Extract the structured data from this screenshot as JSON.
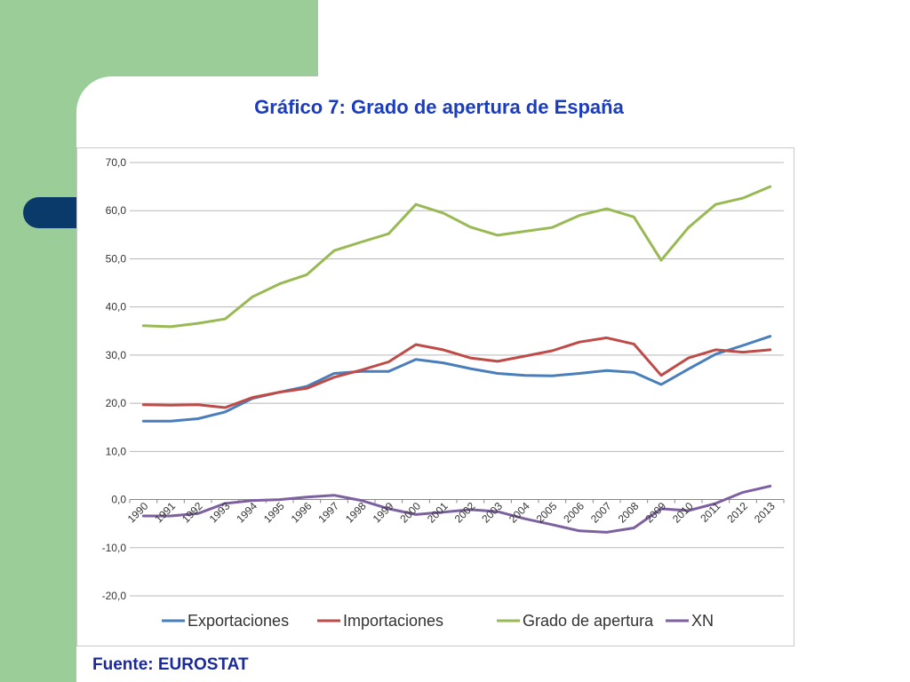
{
  "slide": {
    "title": "Gráfico 7: Grado de apertura de España",
    "source": "Fuente: EUROSTAT"
  },
  "chart_data": {
    "type": "line",
    "title": "",
    "xlabel": "",
    "ylabel": "",
    "ylim": [
      -20,
      70
    ],
    "yticks": [
      -20,
      -10,
      0,
      10,
      20,
      30,
      40,
      50,
      60,
      70
    ],
    "ytick_labels": [
      "-20,0",
      "-10,0",
      "0,0",
      "10,0",
      "20,0",
      "30,0",
      "40,0",
      "50,0",
      "60,0",
      "70,0"
    ],
    "grid": true,
    "legend_position": "bottom",
    "categories": [
      "1990",
      "1991",
      "1992",
      "1993",
      "1994",
      "1995",
      "1996",
      "1997",
      "1998",
      "1999",
      "2000",
      "2001",
      "2002",
      "2003",
      "2004",
      "2005",
      "2006",
      "2007",
      "2008",
      "2009",
      "2010",
      "2011",
      "2012",
      "2013"
    ],
    "series": [
      {
        "name": "Exportaciones",
        "color": "#4a7ebb",
        "values": [
          16.3,
          16.3,
          16.8,
          18.2,
          21.0,
          22.3,
          23.5,
          26.2,
          26.6,
          26.6,
          29.1,
          28.4,
          27.2,
          26.2,
          25.8,
          25.7,
          26.2,
          26.8,
          26.4,
          23.9,
          27.1,
          30.2,
          32.0,
          33.9
        ]
      },
      {
        "name": "Importaciones",
        "color": "#be4b48",
        "values": [
          19.7,
          19.6,
          19.7,
          19.1,
          21.2,
          22.3,
          23.1,
          25.4,
          26.9,
          28.6,
          32.2,
          31.1,
          29.4,
          28.7,
          29.8,
          30.9,
          32.7,
          33.6,
          32.3,
          25.8,
          29.4,
          31.1,
          30.6,
          31.1
        ]
      },
      {
        "name": "Grado de apertura",
        "color": "#98b954",
        "values": [
          36.1,
          35.9,
          36.6,
          37.5,
          42.1,
          44.8,
          46.7,
          51.7,
          53.5,
          55.2,
          61.3,
          59.5,
          56.6,
          54.9,
          55.7,
          56.5,
          59.0,
          60.4,
          58.7,
          49.7,
          56.5,
          61.3,
          62.6,
          65.0
        ]
      },
      {
        "name": "XN",
        "color": "#7d60a0",
        "values": [
          -3.4,
          -3.4,
          -2.9,
          -0.8,
          -0.2,
          0.0,
          0.5,
          0.9,
          -0.2,
          -1.9,
          -3.1,
          -2.6,
          -2.1,
          -2.5,
          -4.0,
          -5.2,
          -6.5,
          -6.8,
          -5.9,
          -1.9,
          -2.3,
          -0.8,
          1.5,
          2.8
        ]
      }
    ]
  }
}
